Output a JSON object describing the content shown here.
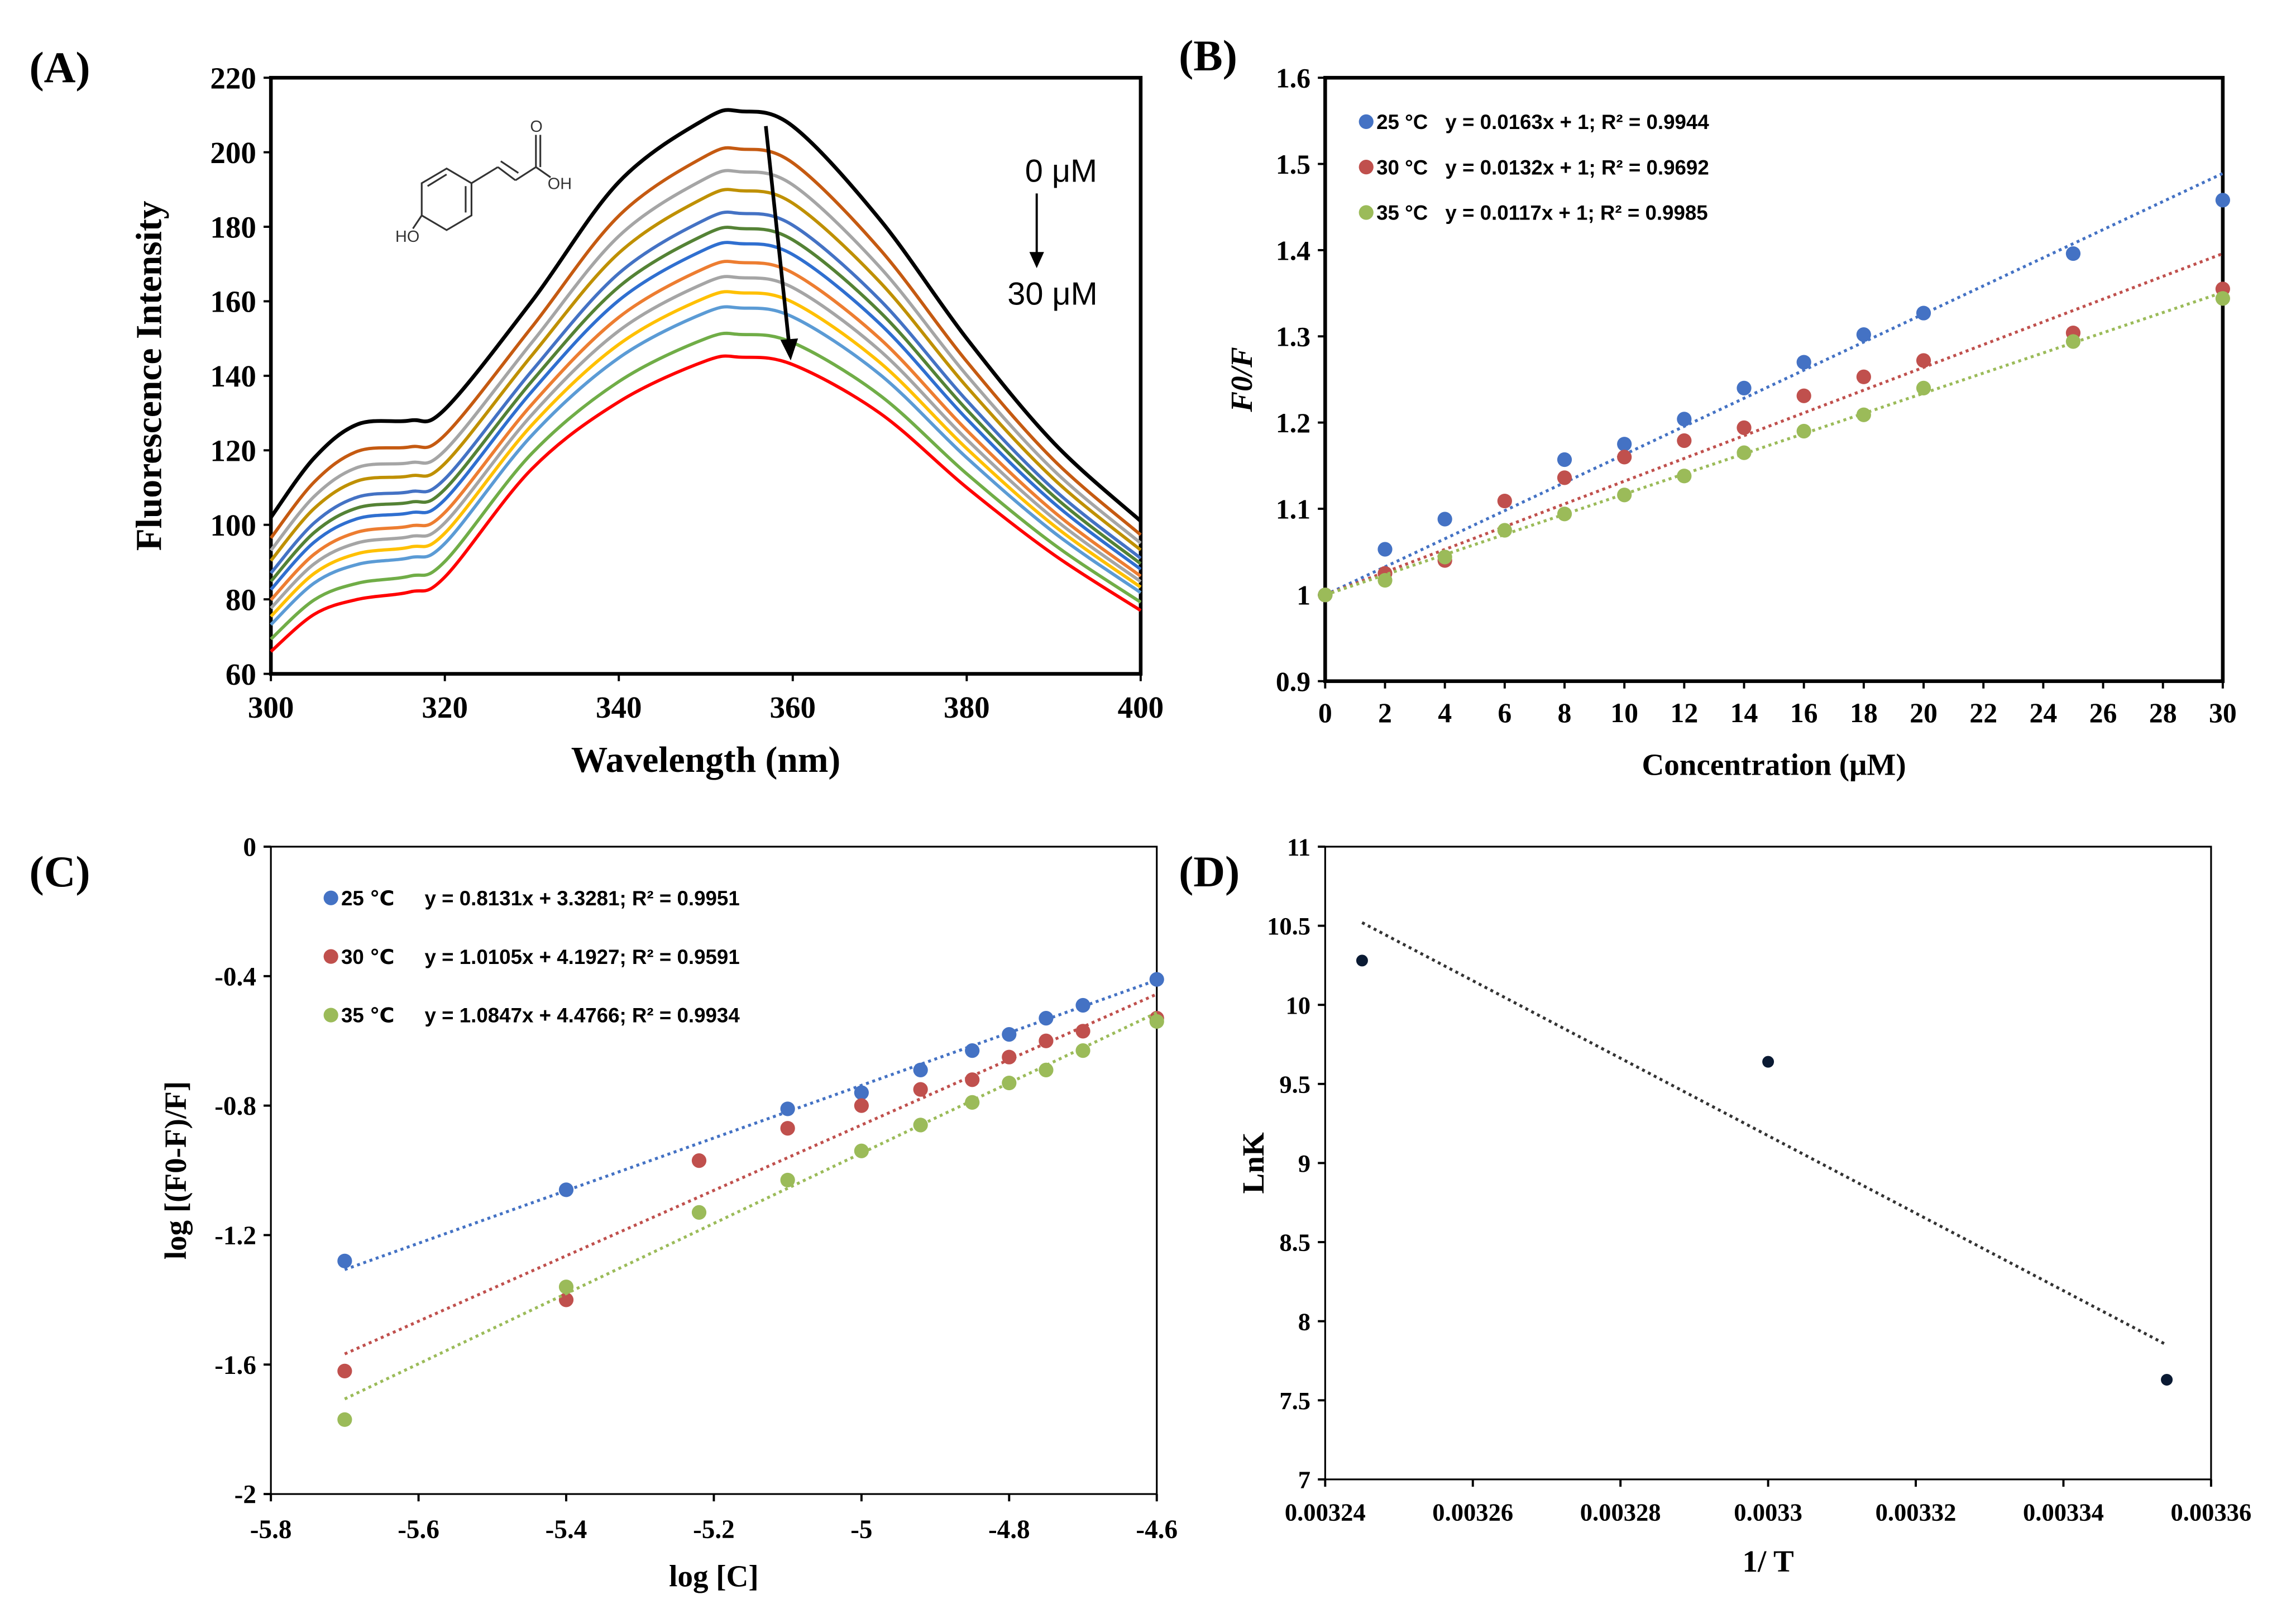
{
  "chart_data": [
    {
      "panel": "(A)",
      "type": "line",
      "xlabel": "Wavelength (nm)",
      "ylabel": "Fluorescence Intensity",
      "xlim": [
        300,
        400
      ],
      "ylim": [
        60,
        220
      ],
      "xticks": [
        300,
        320,
        340,
        360,
        380,
        400
      ],
      "yticks": [
        60,
        80,
        100,
        120,
        140,
        160,
        180,
        200,
        220
      ],
      "annotation_top": "0 μM",
      "annotation_bottom": "30 μM",
      "structure_labels": {
        "oh": "OH",
        "ho": "HO",
        "o": "O"
      },
      "x": [
        300,
        305,
        310,
        316,
        320,
        330,
        340,
        350,
        354,
        360,
        370,
        380,
        390,
        400
      ],
      "upper_curve": [
        102,
        118,
        127,
        128,
        131,
        160,
        192,
        209,
        211,
        207,
        182,
        150,
        122,
        101
      ],
      "lower_curve": [
        66,
        76,
        80,
        82,
        86,
        115,
        133,
        144,
        145,
        143,
        130,
        110,
        92,
        77
      ],
      "series": [
        {
          "peak": 211,
          "color": "#000000"
        },
        {
          "peak": 201,
          "color": "#C55A11"
        },
        {
          "peak": 195,
          "color": "#A5A5A5"
        },
        {
          "peak": 190,
          "color": "#BF9000"
        },
        {
          "peak": 184,
          "color": "#4472C4"
        },
        {
          "peak": 180,
          "color": "#548235"
        },
        {
          "peak": 176,
          "color": "#2F6FD0"
        },
        {
          "peak": 171,
          "color": "#ED7D31"
        },
        {
          "peak": 167,
          "color": "#A5A5A5"
        },
        {
          "peak": 163,
          "color": "#FFC000"
        },
        {
          "peak": 159,
          "color": "#5B9BD5"
        },
        {
          "peak": 152,
          "color": "#70AD47"
        },
        {
          "peak": 146,
          "color": "#FF0000"
        }
      ]
    },
    {
      "panel": "(B)",
      "type": "scatter",
      "xlabel": "Concentration (μM)",
      "ylabel": "F0/F",
      "xlim": [
        0,
        30
      ],
      "ylim": [
        0.9,
        1.6
      ],
      "xticks": [
        0,
        2,
        4,
        6,
        8,
        10,
        12,
        14,
        16,
        18,
        20,
        22,
        24,
        26,
        28,
        30
      ],
      "yticks": [
        0.9,
        1,
        1.1,
        1.2,
        1.3,
        1.4,
        1.5,
        1.6
      ],
      "legend_position": "top-left",
      "series": [
        {
          "name": "25 °C",
          "equation": "y = 0.0163x + 1; R² = 0.9944",
          "color": "#4472C4",
          "slope": 0.0163,
          "intercept": 1,
          "x": [
            0,
            2,
            4,
            8,
            10,
            12,
            14,
            16,
            18,
            20,
            25,
            30
          ],
          "y": [
            1,
            1.053,
            1.088,
            1.157,
            1.175,
            1.204,
            1.24,
            1.27,
            1.302,
            1.327,
            1.396,
            1.458
          ]
        },
        {
          "name": "30 °C",
          "equation": "y = 0.0132x + 1; R² = 0.9692",
          "color": "#C0504D",
          "slope": 0.0132,
          "intercept": 1,
          "x": [
            0,
            2,
            4,
            6,
            8,
            10,
            12,
            14,
            16,
            18,
            20,
            25,
            30
          ],
          "y": [
            1,
            1.025,
            1.04,
            1.109,
            1.136,
            1.16,
            1.179,
            1.194,
            1.231,
            1.253,
            1.272,
            1.304,
            1.355
          ]
        },
        {
          "name": "35 °C",
          "equation": "y = 0.0117x + 1; R² = 0.9985",
          "color": "#9BBB59",
          "slope": 0.0117,
          "intercept": 1,
          "x": [
            0,
            2,
            4,
            6,
            8,
            10,
            12,
            14,
            16,
            18,
            20,
            25,
            30
          ],
          "y": [
            1,
            1.017,
            1.044,
            1.075,
            1.094,
            1.116,
            1.138,
            1.165,
            1.19,
            1.209,
            1.24,
            1.294,
            1.344
          ]
        }
      ]
    },
    {
      "panel": "(C)",
      "type": "scatter",
      "xlabel": "log [C]",
      "ylabel": "log [(F0-F)/F]",
      "xlim": [
        -5.8,
        -4.6
      ],
      "ylim": [
        -2,
        0
      ],
      "xticks": [
        -5.8,
        -5.6,
        -5.4,
        -5.2,
        -5,
        -4.8,
        -4.6
      ],
      "yticks": [
        -2,
        -1.6,
        -1.2,
        -0.8,
        -0.4,
        0
      ],
      "legend_position": "top-left",
      "series": [
        {
          "name": "25 ℃",
          "equation": "y = 0.8131x + 3.3281; R² = 0.9951",
          "color": "#4472C4",
          "slope": 0.8131,
          "intercept": 3.3281,
          "x": [
            -5.7,
            -5.4,
            -5.1,
            -5,
            -4.92,
            -4.85,
            -4.8,
            -4.75,
            -4.7,
            -4.6
          ],
          "y": [
            -1.28,
            -1.06,
            -0.81,
            -0.76,
            -0.69,
            -0.63,
            -0.58,
            -0.53,
            -0.49,
            -0.41
          ]
        },
        {
          "name": "30 ℃",
          "equation": "y = 1.0105x + 4.1927; R² = 0.9591",
          "color": "#C0504D",
          "slope": 1.0105,
          "intercept": 4.1927,
          "x": [
            -5.7,
            -5.4,
            -5.22,
            -5.1,
            -5,
            -4.92,
            -4.85,
            -4.8,
            -4.75,
            -4.7,
            -4.6
          ],
          "y": [
            -1.62,
            -1.4,
            -0.97,
            -0.87,
            -0.8,
            -0.75,
            -0.72,
            -0.65,
            -0.6,
            -0.57,
            -0.53
          ]
        },
        {
          "name": "35 ℃",
          "equation": "y = 1.0847x + 4.4766; R² = 0.9934",
          "color": "#9BBB59",
          "slope": 1.0847,
          "intercept": 4.4766,
          "x": [
            -5.7,
            -5.4,
            -5.22,
            -5.1,
            -5,
            -4.92,
            -4.85,
            -4.8,
            -4.75,
            -4.7,
            -4.6
          ],
          "y": [
            -1.77,
            -1.36,
            -1.13,
            -1.03,
            -0.94,
            -0.86,
            -0.79,
            -0.73,
            -0.69,
            -0.63,
            -0.54
          ]
        }
      ]
    },
    {
      "panel": "(D)",
      "type": "scatter",
      "xlabel": "1/ T",
      "ylabel": "LnK",
      "xlim": [
        0.00324,
        0.00336
      ],
      "ylim": [
        7,
        11
      ],
      "xticks": [
        "0.00324",
        "0.00326",
        "0.00328",
        "0.0033",
        "0.00332",
        "0.00334",
        "0.00336"
      ],
      "yticks": [
        7,
        7.5,
        8,
        8.5,
        9,
        9.5,
        10,
        10.5,
        11
      ],
      "series": [
        {
          "name": "LnK",
          "color": "#0A1A33",
          "x": [
            0.003245,
            0.0033,
            0.003354
          ],
          "y": [
            10.28,
            9.64,
            7.63
          ],
          "trend": {
            "x": [
              0.003245,
              0.003354
            ],
            "y": [
              10.52,
              7.85
            ]
          }
        }
      ]
    }
  ]
}
